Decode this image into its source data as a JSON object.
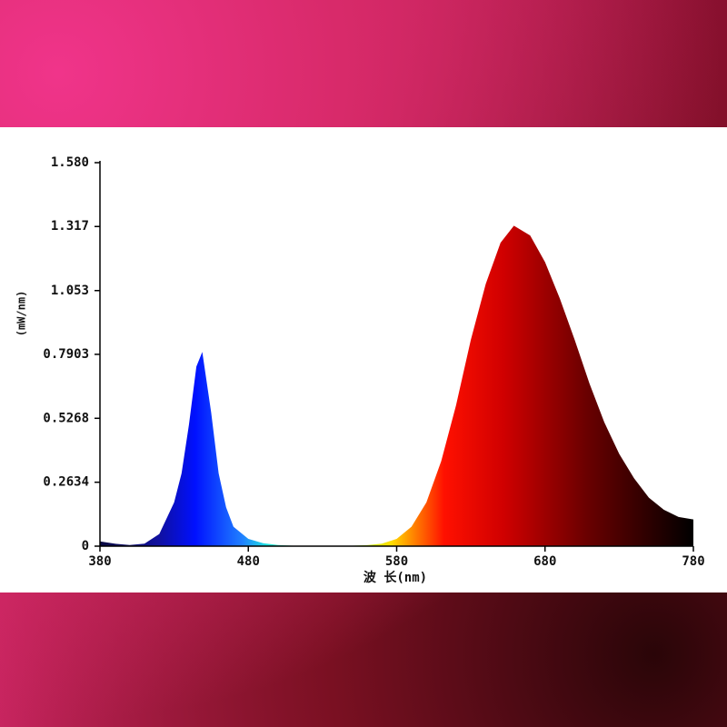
{
  "chart_data": {
    "type": "area",
    "x_label": "波 长(nm)",
    "y_label": "(mW/nm)",
    "x": [
      380,
      390,
      400,
      410,
      420,
      430,
      435,
      440,
      445,
      449,
      455,
      460,
      465,
      470,
      480,
      490,
      500,
      510,
      520,
      530,
      540,
      550,
      560,
      570,
      580,
      590,
      600,
      610,
      620,
      630,
      640,
      650,
      659,
      670,
      680,
      690,
      700,
      710,
      720,
      730,
      740,
      750,
      760,
      770,
      780
    ],
    "values": [
      0.02,
      0.01,
      0.005,
      0.01,
      0.05,
      0.18,
      0.3,
      0.5,
      0.74,
      0.8,
      0.55,
      0.3,
      0.16,
      0.08,
      0.03,
      0.012,
      0.005,
      0.002,
      0.002,
      0.002,
      0.002,
      0.002,
      0.004,
      0.01,
      0.03,
      0.08,
      0.18,
      0.35,
      0.58,
      0.85,
      1.08,
      1.25,
      1.32,
      1.28,
      1.17,
      1.02,
      0.85,
      0.67,
      0.51,
      0.38,
      0.28,
      0.2,
      0.15,
      0.12,
      0.11
    ],
    "xlim": [
      380,
      780
    ],
    "ylim": [
      0,
      1.58
    ],
    "xticks": [
      380,
      480,
      580,
      680,
      780
    ],
    "yticks": [
      0,
      0.2634,
      0.5268,
      0.7903,
      1.053,
      1.317,
      {
        "value": 1.58,
        "label": "1.580"
      }
    ]
  }
}
